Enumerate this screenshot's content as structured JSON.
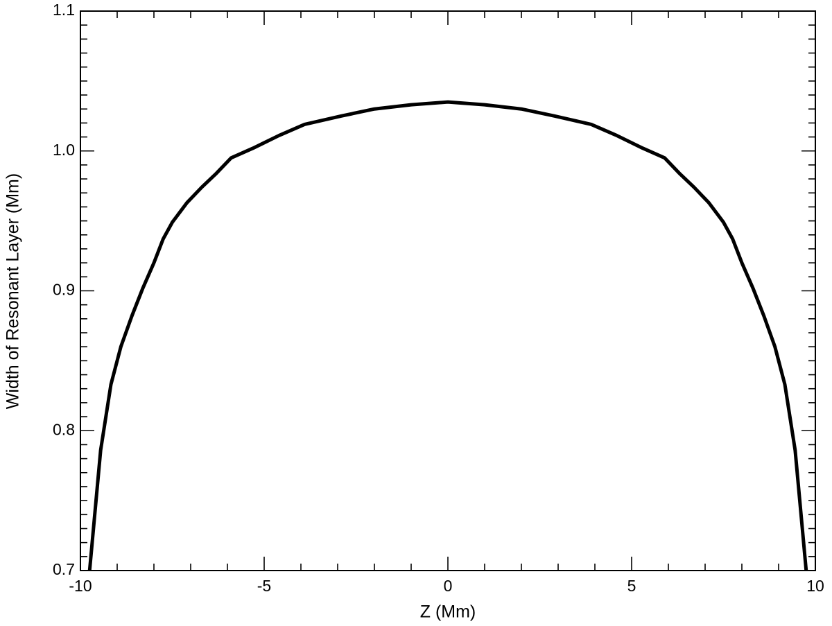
{
  "chart_data": {
    "type": "line",
    "x_label": "Z (Mm)",
    "y_label": "Width of Resonant Layer (Mm)",
    "xlim": [
      -10,
      10
    ],
    "xticks": [
      -10,
      -5,
      0,
      5,
      10
    ],
    "ylim": [
      0.7,
      1.1
    ],
    "yticks": [
      0.7,
      0.8,
      0.9,
      {
        "value": 1,
        "label": "1.0"
      },
      1.1
    ],
    "series": [
      {
        "color": "#000000",
        "x": [
          -9.75,
          -9.45,
          -9.17,
          -8.9,
          -8.6,
          -8.3,
          -8.0,
          -7.75,
          -7.5,
          -7.1,
          -6.7,
          -6.3,
          -5.9,
          -5.3,
          -4.6,
          -3.9,
          -2.9,
          -2.0,
          -1.0,
          0,
          1.0,
          2.0,
          2.9,
          3.9,
          4.6,
          5.3,
          5.9,
          6.3,
          6.7,
          7.1,
          7.5,
          7.75,
          8.0,
          8.3,
          8.6,
          8.9,
          9.17,
          9.45,
          9.75
        ],
        "values": [
          0.7,
          0.786,
          0.833,
          0.86,
          0.882,
          0.902,
          0.92,
          0.937,
          0.949,
          0.963,
          0.974,
          0.984,
          0.995,
          1.002,
          1.011,
          1.019,
          1.025,
          1.03,
          1.033,
          1.035,
          1.033,
          1.03,
          1.025,
          1.019,
          1.011,
          1.002,
          0.995,
          0.984,
          0.974,
          0.963,
          0.949,
          0.937,
          0.92,
          0.902,
          0.882,
          0.86,
          0.833,
          0.786,
          0.7
        ]
      }
    ]
  }
}
